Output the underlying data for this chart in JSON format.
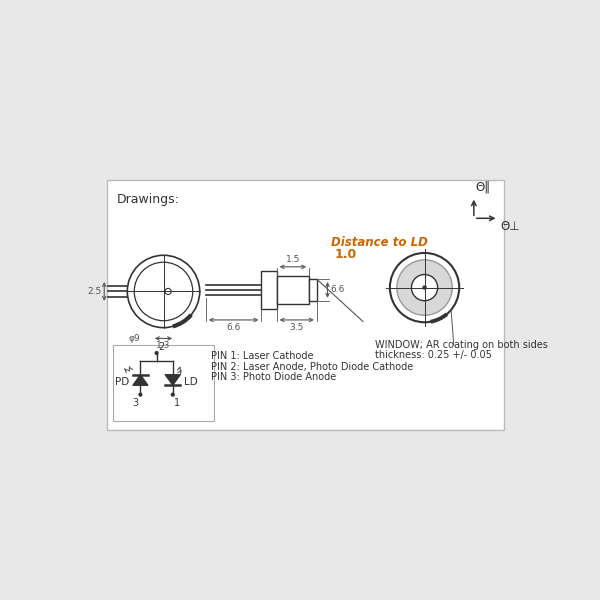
{
  "title": "Drawings:",
  "bg_color": "#e8e8e8",
  "box_color": "#ffffff",
  "box_border": "#bbbbbb",
  "line_color": "#333333",
  "dim_color": "#555555",
  "label_color": "#cc6600",
  "text_color": "#333333",
  "pin_text": [
    "PIN 1: Laser Cathode",
    "PIN 2: Laser Anode, Photo Diode Cathode",
    "PIN 3: Photo Diode Anode"
  ],
  "window_text": [
    "WINDOW; AR coating on both sides",
    "thickness: 0.25 +/- 0.05"
  ],
  "distance_text": "Distance to LD",
  "distance_val": "1.0",
  "dim_66_pins": "6.6",
  "dim_35": "3.5",
  "dim_15": "1.5",
  "dim_66_right": "6.6",
  "dim_25": "2.5",
  "dim_13": "1.3",
  "dim_phi9": "φ9",
  "theta_par": "Θ‖",
  "theta_perp": "Θ⊥"
}
